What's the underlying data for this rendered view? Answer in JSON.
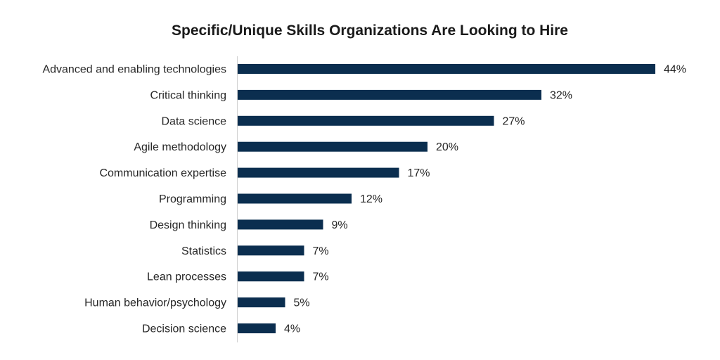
{
  "chart_data": {
    "type": "bar",
    "orientation": "horizontal",
    "title": "Specific/Unique Skills Organizations Are Looking to Hire",
    "xlabel": "",
    "ylabel": "",
    "categories": [
      "Advanced and enabling technologies",
      "Critical thinking",
      "Data science",
      "Agile methodology",
      "Communication expertise",
      "Programming",
      "Design thinking",
      "Statistics",
      "Lean processes",
      "Human behavior/psychology",
      "Decision science"
    ],
    "values": [
      44,
      32,
      27,
      20,
      17,
      12,
      9,
      7,
      7,
      5,
      4
    ],
    "value_labels": [
      "44%",
      "32%",
      "27%",
      "20%",
      "17%",
      "12%",
      "9%",
      "7%",
      "7%",
      "5%",
      "4%"
    ],
    "xlim": [
      0,
      44
    ],
    "grid": false,
    "legend": "none",
    "bar_color": "#0b2e4f"
  }
}
